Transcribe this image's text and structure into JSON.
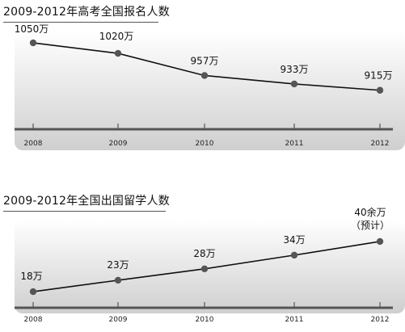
{
  "chart_data": [
    {
      "type": "line",
      "title": "2009-2012年高考全国报名人数",
      "categories": [
        "2008",
        "2009",
        "2010",
        "2011",
        "2012"
      ],
      "values": [
        1050,
        1020,
        957,
        933,
        915
      ],
      "data_labels": [
        "1050万",
        "1020万",
        "957万",
        "933万",
        "915万"
      ],
      "ylim": [
        850,
        1080
      ],
      "grid": false,
      "colors": {
        "line": "#111111",
        "axis": "#555555",
        "bg_top": "#ffffff",
        "bg_bottom": "#cfcfcf"
      }
    },
    {
      "type": "line",
      "title": "2009-2012年全国出国留学人数",
      "categories": [
        "2008",
        "2009",
        "2010",
        "2011",
        "2012"
      ],
      "values": [
        18,
        23,
        28,
        34,
        40
      ],
      "data_labels": [
        "18万",
        "23万",
        "28万",
        "34万",
        "40余万（预计）"
      ],
      "ylim": [
        12,
        46
      ],
      "grid": false,
      "colors": {
        "line": "#111111",
        "axis": "#555555",
        "bg_top": "#ffffff",
        "bg_bottom": "#cfcfcf"
      }
    }
  ]
}
